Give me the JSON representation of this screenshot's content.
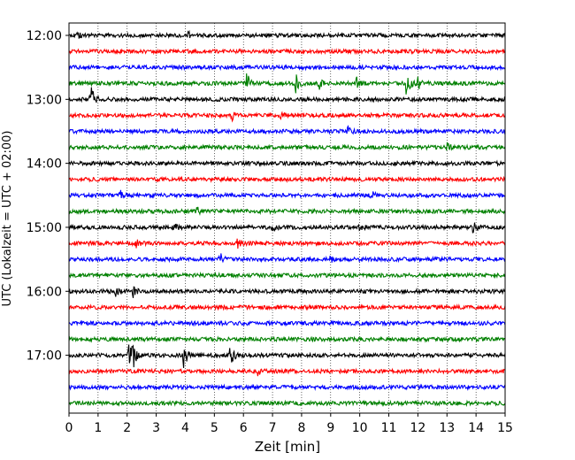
{
  "chart_data": {
    "type": "line",
    "title": "",
    "xlabel": "Zeit  [min]",
    "ylabel": "UTC (Lokalzeit = UTC + 02:00)",
    "xlim": [
      0,
      15
    ],
    "x_ticks": [
      "0",
      "1",
      "2",
      "3",
      "4",
      "5",
      "6",
      "7",
      "8",
      "9",
      "10",
      "11",
      "12",
      "13",
      "14",
      "15"
    ],
    "y_tick_labels": [
      "12:00",
      "13:00",
      "14:00",
      "15:00",
      "16:00",
      "17:00"
    ],
    "grid": "vertical dotted",
    "trace_count": 24,
    "trace_interval_minutes": 15,
    "colors": [
      "#000000",
      "#ff0000",
      "#0000ff",
      "#008000"
    ],
    "events": [
      {
        "trace": 0,
        "x": 0.3,
        "amp": 0.35
      },
      {
        "trace": 0,
        "x": 4.1,
        "amp": 0.25
      },
      {
        "trace": 3,
        "x": 6.1,
        "amp": 1.0
      },
      {
        "trace": 3,
        "x": 7.8,
        "amp": 0.9
      },
      {
        "trace": 3,
        "x": 8.6,
        "amp": 0.55
      },
      {
        "trace": 3,
        "x": 9.9,
        "amp": 0.5
      },
      {
        "trace": 3,
        "x": 11.6,
        "amp": 1.3
      },
      {
        "trace": 3,
        "x": 12.0,
        "amp": 0.9
      },
      {
        "trace": 4,
        "x": 0.75,
        "amp": 1.2
      },
      {
        "trace": 5,
        "x": 5.6,
        "amp": 0.35
      },
      {
        "trace": 5,
        "x": 7.3,
        "amp": 0.3
      },
      {
        "trace": 6,
        "x": 9.6,
        "amp": 0.3
      },
      {
        "trace": 7,
        "x": 13.0,
        "amp": 0.35
      },
      {
        "trace": 10,
        "x": 1.75,
        "amp": 0.4
      },
      {
        "trace": 10,
        "x": 10.4,
        "amp": 0.35
      },
      {
        "trace": 11,
        "x": 4.4,
        "amp": 0.3
      },
      {
        "trace": 12,
        "x": 3.6,
        "amp": 0.3
      },
      {
        "trace": 12,
        "x": 7.0,
        "amp": 0.35
      },
      {
        "trace": 12,
        "x": 10.0,
        "amp": 0.35
      },
      {
        "trace": 12,
        "x": 13.9,
        "amp": 0.55
      },
      {
        "trace": 13,
        "x": 2.3,
        "amp": 0.3
      },
      {
        "trace": 13,
        "x": 5.8,
        "amp": 0.45
      },
      {
        "trace": 14,
        "x": 5.2,
        "amp": 0.45
      },
      {
        "trace": 14,
        "x": 9.0,
        "amp": 0.3
      },
      {
        "trace": 16,
        "x": 1.6,
        "amp": 0.35
      },
      {
        "trace": 16,
        "x": 2.2,
        "amp": 0.45
      },
      {
        "trace": 20,
        "x": 2.05,
        "amp": 1.1
      },
      {
        "trace": 20,
        "x": 2.2,
        "amp": 1.0
      },
      {
        "trace": 20,
        "x": 3.95,
        "amp": 1.2
      },
      {
        "trace": 20,
        "x": 5.55,
        "amp": 1.3
      },
      {
        "trace": 21,
        "x": 6.5,
        "amp": 0.3
      }
    ]
  }
}
